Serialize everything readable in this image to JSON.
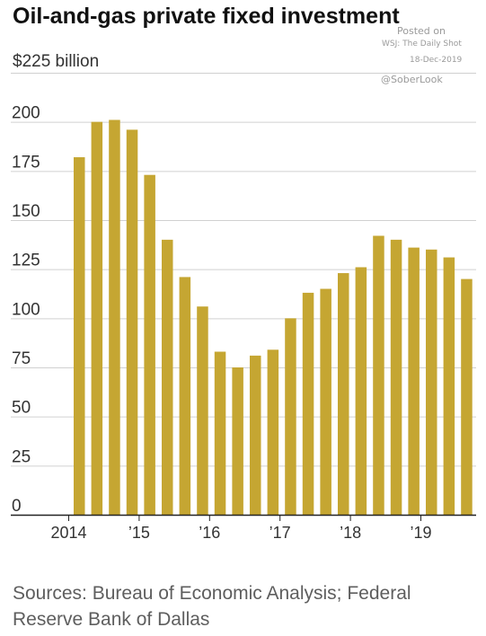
{
  "chart_data": {
    "type": "bar",
    "title": "Oil-and-gas private fixed investment",
    "unit_label": "$225 billion",
    "ylim": [
      0,
      225
    ],
    "yticks": [
      0,
      25,
      50,
      75,
      100,
      125,
      150,
      175,
      200
    ],
    "ytick_labels": [
      "0",
      "25",
      "50",
      "75",
      "100",
      "125",
      "150",
      "175",
      "200"
    ],
    "x_tick_labels": [
      "2014",
      "’15",
      "’16",
      "’17",
      "’18",
      "’19"
    ],
    "grid": true,
    "bar_color": "#c5a632",
    "categories": [
      "2014 Q1",
      "2014 Q2",
      "2014 Q3",
      "2014 Q4",
      "2015 Q1",
      "2015 Q2",
      "2015 Q3",
      "2015 Q4",
      "2016 Q1",
      "2016 Q2",
      "2016 Q3",
      "2016 Q4",
      "2017 Q1",
      "2017 Q2",
      "2017 Q3",
      "2017 Q4",
      "2018 Q1",
      "2018 Q2",
      "2018 Q3",
      "2018 Q4",
      "2019 Q1",
      "2019 Q2",
      "2019 Q3"
    ],
    "values": [
      182,
      200,
      201,
      196,
      173,
      140,
      121,
      106,
      83,
      75,
      81,
      84,
      100,
      113,
      115,
      123,
      126,
      142,
      140,
      136,
      135,
      131,
      120
    ]
  },
  "sources": "Sources: Bureau of Economic Analysis; Federal Reserve Bank of Dallas",
  "watermark": {
    "posted": "Posted on",
    "source": "WSJ: The Daily Shot",
    "date": "18-Dec-2019",
    "handle": "@SoberLook"
  }
}
